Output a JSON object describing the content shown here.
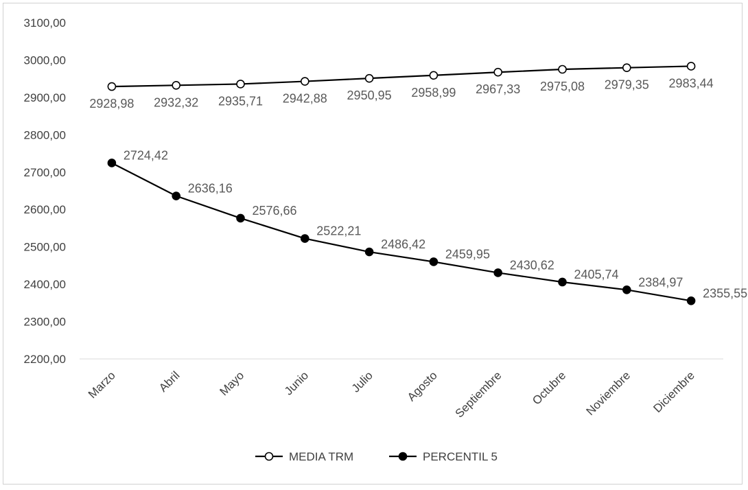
{
  "chart_data": {
    "type": "line",
    "title": "",
    "xlabel": "",
    "ylabel": "",
    "categories": [
      "Marzo",
      "Abril",
      "Mayo",
      "Junio",
      "Julio",
      "Agosto",
      "Septiembre",
      "Octubre",
      "Noviembre",
      "Diciembre"
    ],
    "ylim": [
      2200,
      3100
    ],
    "yticks": [
      "2200,00",
      "2300,00",
      "2400,00",
      "2500,00",
      "2600,00",
      "2700,00",
      "2800,00",
      "2900,00",
      "3000,00",
      "3100,00"
    ],
    "grid": true,
    "legend_position": "bottom",
    "series": [
      {
        "name": "MEDIA TRM",
        "marker": "open-circle",
        "color": "#000000",
        "values": [
          2928.98,
          2932.32,
          2935.71,
          2942.88,
          2950.95,
          2958.99,
          2967.33,
          2975.08,
          2979.35,
          2983.44
        ],
        "labels": [
          "2928,98",
          "2932,32",
          "2935,71",
          "2942,88",
          "2950,95",
          "2958,99",
          "2967,33",
          "2975,08",
          "2979,35",
          "2983,44"
        ]
      },
      {
        "name": "PERCENTIL 5",
        "marker": "filled-circle",
        "color": "#000000",
        "values": [
          2724.42,
          2636.16,
          2576.66,
          2522.21,
          2486.42,
          2459.95,
          2430.62,
          2405.74,
          2384.97,
          2355.55
        ],
        "labels": [
          "2724,42",
          "2636,16",
          "2576,66",
          "2522,21",
          "2486,42",
          "2459,95",
          "2430,62",
          "2405,74",
          "2384,97",
          "2355,55"
        ]
      }
    ]
  }
}
